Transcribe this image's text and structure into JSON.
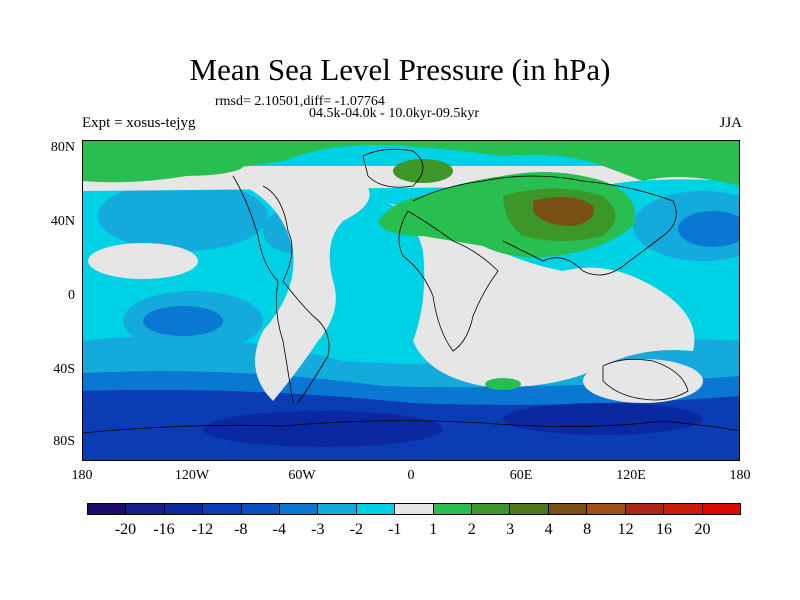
{
  "title": "Mean Sea Level Pressure (in hPa)",
  "stats": "rmsd= 2.10501,diff= -1.07764",
  "period": "04.5k-04.0k - 10.0kyr-09.5kyr",
  "experiment": "Expt = xosus-tejyg",
  "season": "JJA",
  "axes": {
    "y_ticks": [
      "80N",
      "40N",
      "0",
      "40S",
      "80S"
    ],
    "x_ticks": [
      "180",
      "120W",
      "60W",
      "0",
      "60E",
      "120E",
      "180"
    ]
  },
  "colorbar": {
    "colors": [
      "#1e0a6e",
      "#141e8c",
      "#0a28a0",
      "#0a3cb4",
      "#0a50be",
      "#0a78d2",
      "#14aadc",
      "#00d2e6",
      "#e6e6e6",
      "#28be50",
      "#3c9628",
      "#50781e",
      "#785014",
      "#a05014",
      "#aa2814",
      "#c81e0a",
      "#dc0a00"
    ],
    "labels": [
      "-20",
      "-16",
      "-12",
      "-8",
      "-4",
      "-3",
      "-2",
      "-1",
      "1",
      "2",
      "3",
      "4",
      "8",
      "12",
      "16",
      "20"
    ]
  }
}
